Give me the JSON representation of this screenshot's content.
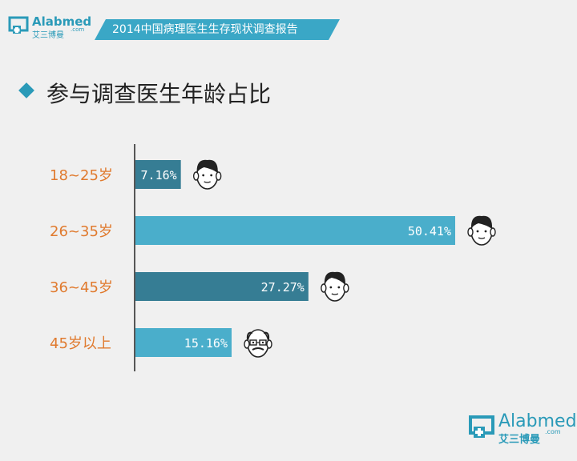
{
  "header": {
    "logo_en": "Alabmed",
    "logo_cn": "艾三博曼",
    "logo_com": ".com",
    "banner_title": "2014中国病理医生生存现状调查报告"
  },
  "section": {
    "title": "参与调查医生年龄占比"
  },
  "footer": {
    "logo_en": "Alabmed",
    "logo_cn": "艾三博曼",
    "logo_com": ".com"
  },
  "colors": {
    "accent": "#2a9ab8",
    "bar_light": "#4aaecb",
    "bar_dark": "#367d94",
    "category_label": "#e07a2e"
  },
  "chart_data": {
    "type": "bar",
    "orientation": "horizontal",
    "categories": [
      "18~25岁",
      "26~35岁",
      "36~45岁",
      "45岁以上"
    ],
    "values": [
      7.16,
      50.41,
      27.27,
      15.16
    ],
    "value_labels": [
      "7.16%",
      "50.41%",
      "27.27%",
      "15.16%"
    ],
    "bar_colors": [
      "#367d94",
      "#4aaecb",
      "#367d94",
      "#4aaecb"
    ],
    "face_icons": [
      "young-face-icon",
      "adult-face-icon",
      "middle-aged-face-icon",
      "elderly-face-icon"
    ],
    "xlim": [
      0,
      55
    ],
    "grid": false,
    "legend": "none"
  }
}
